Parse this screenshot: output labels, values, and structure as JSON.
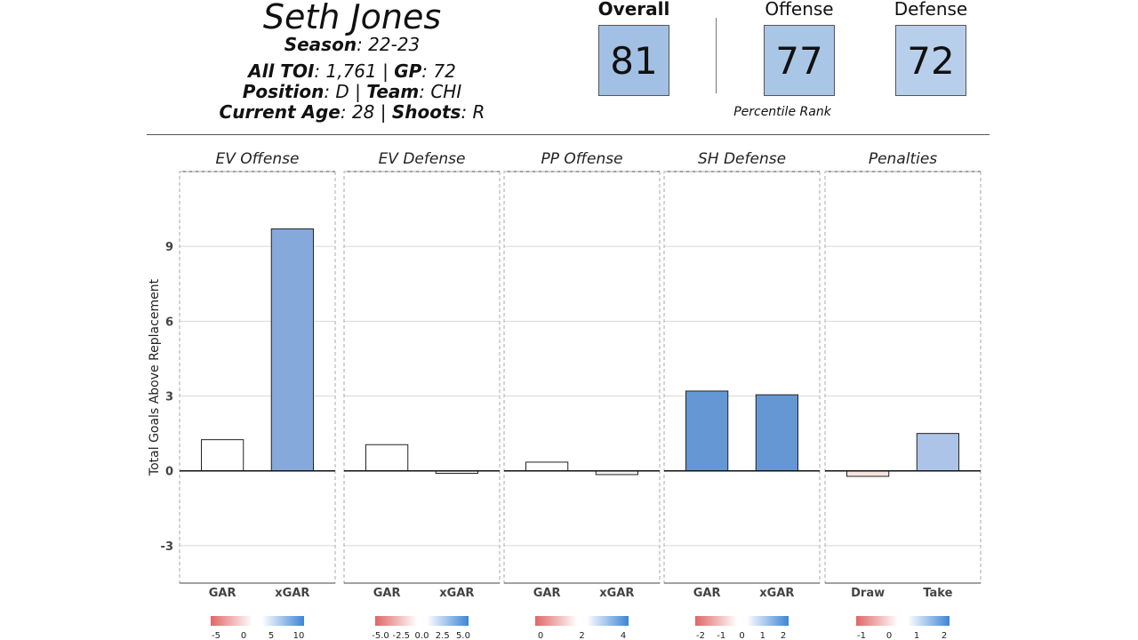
{
  "player": {
    "name": "Seth Jones",
    "season_label": "Season",
    "season": ": 22-23",
    "toi_label": "All TOI",
    "toi": ": 1,761 | ",
    "gp_label": "GP",
    "gp": ": 72",
    "position_label": "Position",
    "position": ": D | ",
    "team_label": "Team",
    "team": ": CHI",
    "age_label": "Current Age",
    "age": ": 28 | ",
    "shoots_label": "Shoots",
    "shoots": ": R"
  },
  "scores": {
    "overall_label": "Overall",
    "overall": "81",
    "overall_color": "#a1c0e4",
    "offense_label": "Offense",
    "offense": "77",
    "offense_color": "#a9c6e6",
    "defense_label": "Defense",
    "defense": "72",
    "defense_color": "#b7cfeb",
    "percentile_label": "Percentile Rank"
  },
  "chart_data": {
    "type": "bar",
    "ylabel": "Total Goals Above Replacement",
    "ylim": [
      -4.5,
      12
    ],
    "yticks": [
      -3,
      0,
      3,
      6,
      9
    ],
    "panels": [
      {
        "title": "EV Offense",
        "categories": [
          "GAR",
          "xGAR"
        ],
        "values": [
          1.25,
          9.7
        ],
        "colors": [
          "#ffffff",
          "#86a9dc"
        ],
        "legend": {
          "ticks": [
            "-5",
            "0",
            "5",
            "10"
          ]
        }
      },
      {
        "title": "EV Defense",
        "categories": [
          "GAR",
          "xGAR"
        ],
        "values": [
          1.05,
          -0.1
        ],
        "colors": [
          "#ffffff",
          "#fbf3f3"
        ],
        "legend": {
          "ticks": [
            "-5.0",
            "-2.5",
            "0.0",
            "2.5",
            "5.0"
          ]
        }
      },
      {
        "title": "PP Offense",
        "categories": [
          "GAR",
          "xGAR"
        ],
        "values": [
          0.35,
          -0.15
        ],
        "colors": [
          "#ffffff",
          "#fbf3f3"
        ],
        "legend": {
          "ticks": [
            "0",
            "2",
            "4"
          ]
        }
      },
      {
        "title": "SH Defense",
        "categories": [
          "GAR",
          "xGAR"
        ],
        "values": [
          3.2,
          3.05
        ],
        "colors": [
          "#6497d4",
          "#6497d4"
        ],
        "legend": {
          "ticks": [
            "-2",
            "-1",
            "0",
            "1",
            "2"
          ]
        }
      },
      {
        "title": "Penalties",
        "categories": [
          "Draw",
          "Take"
        ],
        "values": [
          -0.22,
          1.5
        ],
        "colors": [
          "#f9e4e4",
          "#acc4e8"
        ],
        "legend": {
          "ticks": [
            "-1",
            "0",
            "1",
            "2"
          ]
        }
      }
    ]
  }
}
